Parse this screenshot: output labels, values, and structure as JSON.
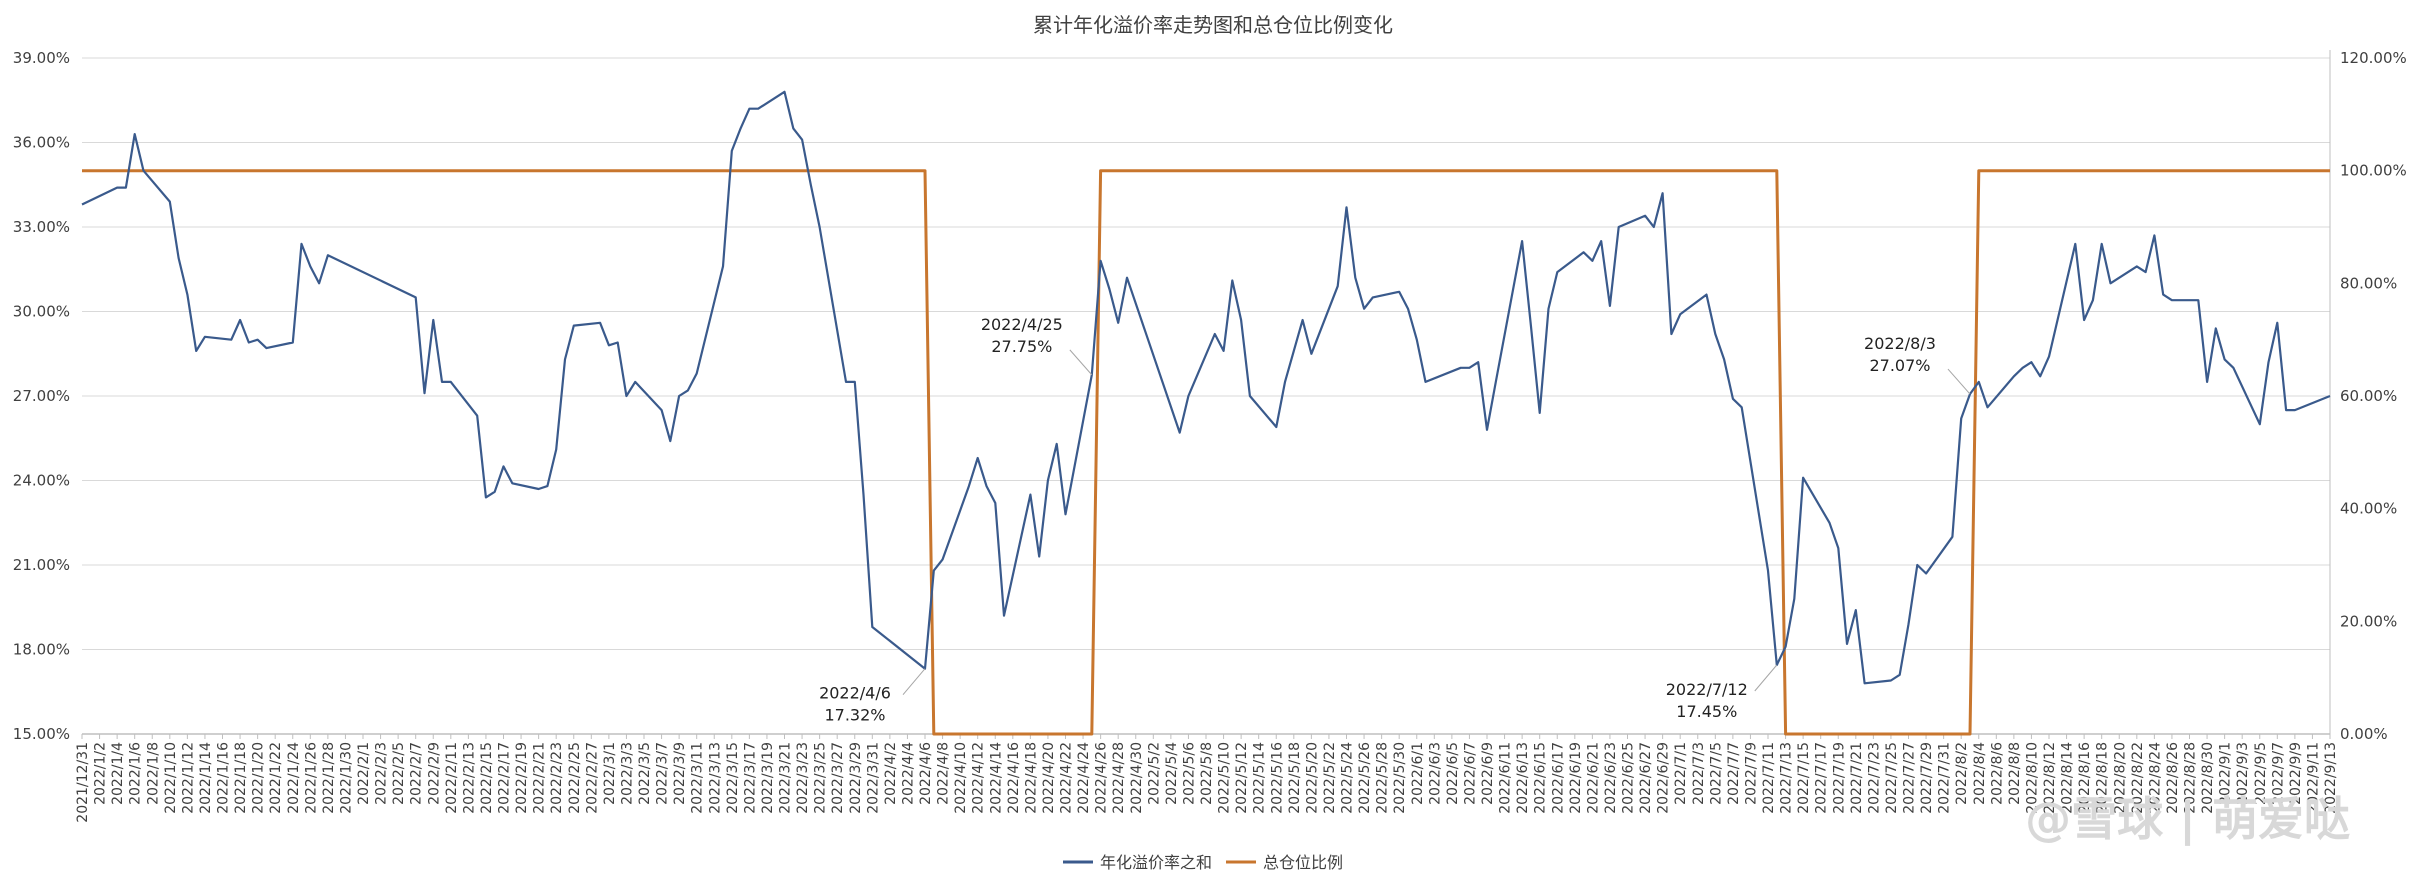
{
  "chart_data": {
    "type": "line",
    "title": "累计年化溢价率走势图和总仓位比例变化",
    "watermark": "@雪球 | 萌爱哒",
    "colors": {
      "premium": "#3a5a8c",
      "position": "#c8762e",
      "grid": "#d9d9d9",
      "axis": "#bfbfbf"
    },
    "y_left": {
      "min": 15,
      "max": 39,
      "ticks": [
        "15.00%",
        "18.00%",
        "21.00%",
        "24.00%",
        "27.00%",
        "30.00%",
        "33.00%",
        "36.00%",
        "39.00%"
      ]
    },
    "y_right": {
      "min": 0,
      "max": 120,
      "ticks": [
        "0.00%",
        "20.00%",
        "40.00%",
        "60.00%",
        "80.00%",
        "100.00%",
        "120.00%"
      ]
    },
    "x_labels": [
      "2021/12/31",
      "2022/1/2",
      "2022/1/4",
      "2022/1/6",
      "2022/1/8",
      "2022/1/10",
      "2022/1/12",
      "2022/1/14",
      "2022/1/16",
      "2022/1/18",
      "2022/1/20",
      "2022/1/22",
      "2022/1/24",
      "2022/1/26",
      "2022/1/28",
      "2022/1/30",
      "2022/2/1",
      "2022/2/3",
      "2022/2/5",
      "2022/2/7",
      "2022/2/9",
      "2022/2/11",
      "2022/2/13",
      "2022/2/15",
      "2022/2/17",
      "2022/2/19",
      "2022/2/21",
      "2022/2/23",
      "2022/2/25",
      "2022/2/27",
      "2022/3/1",
      "2022/3/3",
      "2022/3/5",
      "2022/3/7",
      "2022/3/9",
      "2022/3/11",
      "2022/3/13",
      "2022/3/15",
      "2022/3/17",
      "2022/3/19",
      "2022/3/21",
      "2022/3/23",
      "2022/3/25",
      "2022/3/27",
      "2022/3/29",
      "2022/3/31",
      "2022/4/2",
      "2022/4/4",
      "2022/4/6",
      "2022/4/8",
      "2022/4/10",
      "2022/4/12",
      "2022/4/14",
      "2022/4/16",
      "2022/4/18",
      "2022/4/20",
      "2022/4/22",
      "2022/4/24",
      "2022/4/26",
      "2022/4/28",
      "2022/4/30",
      "2022/5/2",
      "2022/5/4",
      "2022/5/6",
      "2022/5/8",
      "2022/5/10",
      "2022/5/12",
      "2022/5/14",
      "2022/5/16",
      "2022/5/18",
      "2022/5/20",
      "2022/5/22",
      "2022/5/24",
      "2022/5/26",
      "2022/5/28",
      "2022/5/30",
      "2022/6/1",
      "2022/6/3",
      "2022/6/5",
      "2022/6/7",
      "2022/6/9",
      "2022/6/11",
      "2022/6/13",
      "2022/6/15",
      "2022/6/17",
      "2022/6/19",
      "2022/6/21",
      "2022/6/23",
      "2022/6/25",
      "2022/6/27",
      "2022/6/29",
      "2022/7/1",
      "2022/7/3",
      "2022/7/5",
      "2022/7/7",
      "2022/7/9",
      "2022/7/11",
      "2022/7/13",
      "2022/7/15",
      "2022/7/17",
      "2022/7/19",
      "2022/7/21",
      "2022/7/23",
      "2022/7/25",
      "2022/7/27",
      "2022/7/29",
      "2022/7/31",
      "2022/8/2",
      "2022/8/4",
      "2022/8/6",
      "2022/8/8",
      "2022/8/10",
      "2022/8/12",
      "2022/8/14",
      "2022/8/16",
      "2022/8/18",
      "2022/8/20",
      "2022/8/22",
      "2022/8/24",
      "2022/8/26",
      "2022/8/28",
      "2022/8/30",
      "2022/9/1",
      "2022/9/3",
      "2022/9/5",
      "2022/9/7",
      "2022/9/9",
      "2022/9/11",
      "2022/9/13"
    ],
    "series": [
      {
        "name": "年化溢价率之和",
        "axis": "left",
        "points": [
          [
            "2021/12/31",
            33.8
          ],
          [
            "2022/1/4",
            34.4
          ],
          [
            "2022/1/5",
            34.4
          ],
          [
            "2022/1/6",
            36.3
          ],
          [
            "2022/1/7",
            35.0
          ],
          [
            "2022/1/10",
            33.9
          ],
          [
            "2022/1/11",
            31.9
          ],
          [
            "2022/1/12",
            30.6
          ],
          [
            "2022/1/13",
            28.6
          ],
          [
            "2022/1/14",
            29.1
          ],
          [
            "2022/1/17",
            29.0
          ],
          [
            "2022/1/18",
            29.7
          ],
          [
            "2022/1/19",
            28.9
          ],
          [
            "2022/1/20",
            29.0
          ],
          [
            "2022/1/21",
            28.7
          ],
          [
            "2022/1/24",
            28.9
          ],
          [
            "2022/1/25",
            32.4
          ],
          [
            "2022/1/26",
            31.6
          ],
          [
            "2022/1/27",
            31.0
          ],
          [
            "2022/1/28",
            32.0
          ],
          [
            "2022/2/7",
            30.5
          ],
          [
            "2022/2/8",
            27.1
          ],
          [
            "2022/2/9",
            29.7
          ],
          [
            "2022/2/10",
            27.5
          ],
          [
            "2022/2/11",
            27.5
          ],
          [
            "2022/2/14",
            26.3
          ],
          [
            "2022/2/15",
            23.4
          ],
          [
            "2022/2/16",
            23.6
          ],
          [
            "2022/2/17",
            24.5
          ],
          [
            "2022/2/18",
            23.9
          ],
          [
            "2022/2/21",
            23.7
          ],
          [
            "2022/2/22",
            23.8
          ],
          [
            "2022/2/23",
            25.1
          ],
          [
            "2022/2/24",
            28.3
          ],
          [
            "2022/2/25",
            29.5
          ],
          [
            "2022/2/28",
            29.6
          ],
          [
            "2022/3/1",
            28.8
          ],
          [
            "2022/3/2",
            28.9
          ],
          [
            "2022/3/3",
            27.0
          ],
          [
            "2022/3/4",
            27.5
          ],
          [
            "2022/3/7",
            26.5
          ],
          [
            "2022/3/8",
            25.4
          ],
          [
            "2022/3/9",
            27.0
          ],
          [
            "2022/3/10",
            27.2
          ],
          [
            "2022/3/11",
            27.8
          ],
          [
            "2022/3/14",
            31.6
          ],
          [
            "2022/3/15",
            35.7
          ],
          [
            "2022/3/16",
            36.5
          ],
          [
            "2022/3/17",
            37.2
          ],
          [
            "2022/3/18",
            37.2
          ],
          [
            "2022/3/21",
            37.8
          ],
          [
            "2022/3/22",
            36.5
          ],
          [
            "2022/3/23",
            36.1
          ],
          [
            "2022/3/24",
            34.5
          ],
          [
            "2022/3/25",
            33.0
          ],
          [
            "2022/3/28",
            27.5
          ],
          [
            "2022/3/29",
            27.5
          ],
          [
            "2022/3/30",
            23.5
          ],
          [
            "2022/3/31",
            18.8
          ],
          [
            "2022/4/6",
            17.32
          ],
          [
            "2022/4/7",
            20.8
          ],
          [
            "2022/4/8",
            21.2
          ],
          [
            "2022/4/11",
            23.8
          ],
          [
            "2022/4/12",
            24.8
          ],
          [
            "2022/4/13",
            23.8
          ],
          [
            "2022/4/14",
            23.2
          ],
          [
            "2022/4/15",
            19.2
          ],
          [
            "2022/4/18",
            23.5
          ],
          [
            "2022/4/19",
            21.3
          ],
          [
            "2022/4/20",
            24.0
          ],
          [
            "2022/4/21",
            25.3
          ],
          [
            "2022/4/22",
            22.8
          ],
          [
            "2022/4/25",
            27.75
          ],
          [
            "2022/4/26",
            31.8
          ],
          [
            "2022/4/27",
            30.8
          ],
          [
            "2022/4/28",
            29.6
          ],
          [
            "2022/4/29",
            31.2
          ],
          [
            "2022/5/5",
            25.7
          ],
          [
            "2022/5/6",
            27.0
          ],
          [
            "2022/5/9",
            29.2
          ],
          [
            "2022/5/10",
            28.6
          ],
          [
            "2022/5/11",
            31.1
          ],
          [
            "2022/5/12",
            29.7
          ],
          [
            "2022/5/13",
            27.0
          ],
          [
            "2022/5/16",
            25.9
          ],
          [
            "2022/5/17",
            27.5
          ],
          [
            "2022/5/18",
            28.6
          ],
          [
            "2022/5/19",
            29.7
          ],
          [
            "2022/5/20",
            28.5
          ],
          [
            "2022/5/23",
            30.9
          ],
          [
            "2022/5/24",
            33.7
          ],
          [
            "2022/5/25",
            31.2
          ],
          [
            "2022/5/26",
            30.1
          ],
          [
            "2022/5/27",
            30.5
          ],
          [
            "2022/5/30",
            30.7
          ],
          [
            "2022/5/31",
            30.1
          ],
          [
            "2022/6/1",
            29.0
          ],
          [
            "2022/6/2",
            27.5
          ],
          [
            "2022/6/6",
            28.0
          ],
          [
            "2022/6/7",
            28.0
          ],
          [
            "2022/6/8",
            28.2
          ],
          [
            "2022/6/9",
            25.8
          ],
          [
            "2022/6/10",
            27.5
          ],
          [
            "2022/6/13",
            32.5
          ],
          [
            "2022/6/14",
            29.5
          ],
          [
            "2022/6/15",
            26.4
          ],
          [
            "2022/6/16",
            30.1
          ],
          [
            "2022/6/17",
            31.4
          ],
          [
            "2022/6/20",
            32.1
          ],
          [
            "2022/6/21",
            31.8
          ],
          [
            "2022/6/22",
            32.5
          ],
          [
            "2022/6/23",
            30.2
          ],
          [
            "2022/6/24",
            33.0
          ],
          [
            "2022/6/27",
            33.4
          ],
          [
            "2022/6/28",
            33.0
          ],
          [
            "2022/6/29",
            34.2
          ],
          [
            "2022/6/30",
            29.2
          ],
          [
            "2022/7/1",
            29.9
          ],
          [
            "2022/7/4",
            30.6
          ],
          [
            "2022/7/5",
            29.2
          ],
          [
            "2022/7/6",
            28.3
          ],
          [
            "2022/7/7",
            26.9
          ],
          [
            "2022/7/8",
            26.6
          ],
          [
            "2022/7/11",
            20.8
          ],
          [
            "2022/7/12",
            17.45
          ],
          [
            "2022/7/13",
            18.1
          ],
          [
            "2022/7/14",
            19.8
          ],
          [
            "2022/7/15",
            24.1
          ],
          [
            "2022/7/18",
            22.5
          ],
          [
            "2022/7/19",
            21.6
          ],
          [
            "2022/7/20",
            18.2
          ],
          [
            "2022/7/21",
            19.4
          ],
          [
            "2022/7/22",
            16.8
          ],
          [
            "2022/7/25",
            16.9
          ],
          [
            "2022/7/26",
            17.1
          ],
          [
            "2022/7/27",
            18.9
          ],
          [
            "2022/7/28",
            21.0
          ],
          [
            "2022/7/29",
            20.7
          ],
          [
            "2022/8/1",
            22.0
          ],
          [
            "2022/8/2",
            26.2
          ],
          [
            "2022/8/3",
            27.07
          ],
          [
            "2022/8/4",
            27.5
          ],
          [
            "2022/8/5",
            26.6
          ],
          [
            "2022/8/8",
            27.7
          ],
          [
            "2022/8/9",
            28.0
          ],
          [
            "2022/8/10",
            28.2
          ],
          [
            "2022/8/11",
            27.7
          ],
          [
            "2022/8/12",
            28.4
          ],
          [
            "2022/8/15",
            32.4
          ],
          [
            "2022/8/16",
            29.7
          ],
          [
            "2022/8/17",
            30.4
          ],
          [
            "2022/8/18",
            32.4
          ],
          [
            "2022/8/19",
            31.0
          ],
          [
            "2022/8/22",
            31.6
          ],
          [
            "2022/8/23",
            31.4
          ],
          [
            "2022/8/24",
            32.7
          ],
          [
            "2022/8/25",
            30.6
          ],
          [
            "2022/8/26",
            30.4
          ],
          [
            "2022/8/29",
            30.4
          ],
          [
            "2022/8/30",
            27.5
          ],
          [
            "2022/8/31",
            29.4
          ],
          [
            "2022/9/1",
            28.3
          ],
          [
            "2022/9/2",
            28.0
          ],
          [
            "2022/9/5",
            26.0
          ],
          [
            "2022/9/6",
            28.2
          ],
          [
            "2022/9/7",
            29.6
          ],
          [
            "2022/9/8",
            26.5
          ],
          [
            "2022/9/9",
            26.5
          ],
          [
            "2022/9/13",
            27.0
          ]
        ]
      },
      {
        "name": "总仓位比例",
        "axis": "right",
        "points": [
          [
            "2021/12/31",
            100
          ],
          [
            "2022/4/6",
            100
          ],
          [
            "2022/4/7",
            0
          ],
          [
            "2022/4/25",
            0
          ],
          [
            "2022/4/26",
            100
          ],
          [
            "2022/7/12",
            100
          ],
          [
            "2022/7/13",
            0
          ],
          [
            "2022/8/3",
            0
          ],
          [
            "2022/8/4",
            100
          ],
          [
            "2022/9/13",
            100
          ]
        ]
      }
    ],
    "annotations": [
      {
        "date": "2022/4/6",
        "value": 17.32,
        "label_date": "2022/4/6",
        "label_value": "17.32%",
        "placement": "below-left"
      },
      {
        "date": "2022/4/25",
        "value": 27.75,
        "label_date": "2022/4/25",
        "label_value": "27.75%",
        "placement": "above-left"
      },
      {
        "date": "2022/7/12",
        "value": 17.45,
        "label_date": "2022/7/12",
        "label_value": "17.45%",
        "placement": "below-left"
      },
      {
        "date": "2022/8/3",
        "value": 27.07,
        "label_date": "2022/8/3",
        "label_value": "27.07%",
        "placement": "above-left"
      }
    ],
    "legend": {
      "position": "bottom",
      "items": [
        "年化溢价率之和",
        "总仓位比例"
      ]
    },
    "grid": true
  }
}
